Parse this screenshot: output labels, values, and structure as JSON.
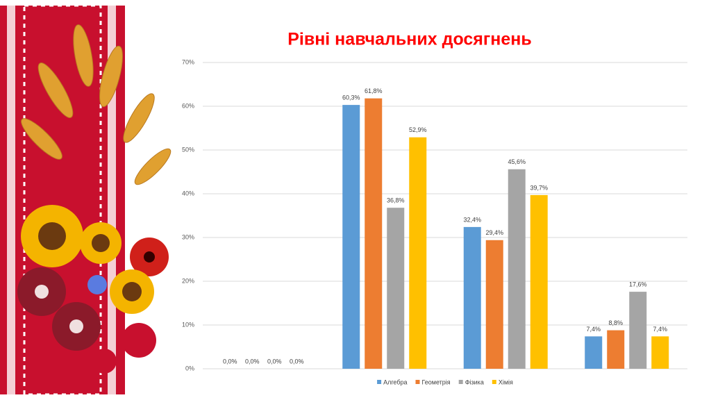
{
  "chart_data": {
    "type": "bar",
    "title": "Рівні навчальних досягнень",
    "categories": [
      null,
      null,
      null,
      null
    ],
    "series": [
      {
        "name": "Алгебра",
        "color": "#5b9bd5",
        "values": [
          0,
          60.3,
          32.4,
          7.4
        ],
        "value_labels": [
          "0,0%",
          "60,3%",
          "32,4%",
          "7,4%"
        ]
      },
      {
        "name": "Геометрія",
        "color": "#ed7d31",
        "values": [
          0,
          61.8,
          29.4,
          8.8
        ],
        "value_labels": [
          "0,0%",
          "61,8%",
          "29,4%",
          "8,8%"
        ]
      },
      {
        "name": "Фізика",
        "color": "#a5a5a5",
        "values": [
          0,
          36.8,
          45.6,
          17.6
        ],
        "value_labels": [
          "0,0%",
          "36,8%",
          "45,6%",
          "17,6%"
        ]
      },
      {
        "name": "Хімія",
        "color": "#ffc000",
        "values": [
          0,
          52.9,
          39.7,
          7.4
        ],
        "value_labels": [
          "0,0%",
          "52,9%",
          "39,7%",
          "7,4%"
        ]
      }
    ],
    "ylim": [
      0,
      70
    ],
    "yticks": [
      {
        "value": 0,
        "label": "0%"
      },
      {
        "value": 10,
        "label": "10%"
      },
      {
        "value": 20,
        "label": "20%"
      },
      {
        "value": 30,
        "label": "30%"
      },
      {
        "value": 40,
        "label": "40%"
      },
      {
        "value": 50,
        "label": "50%"
      },
      {
        "value": 60,
        "label": "60%"
      },
      {
        "value": 70,
        "label": "70%"
      }
    ],
    "grid": true,
    "legend": "bottom"
  }
}
